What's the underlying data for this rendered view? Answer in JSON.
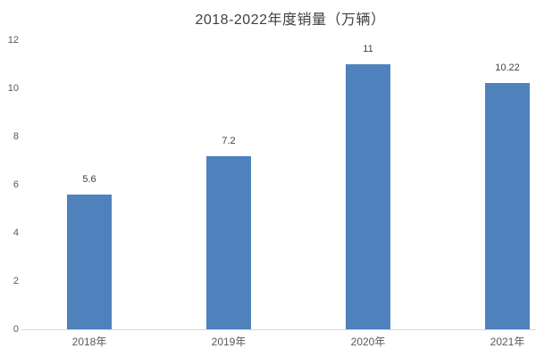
{
  "chart_data": {
    "type": "bar",
    "title": "2018-2022年度销量（万辆）",
    "categories": [
      "2018年",
      "2019年",
      "2020年",
      "2021年"
    ],
    "values": [
      5.6,
      7.2,
      11,
      10.22
    ],
    "data_labels": [
      "5.6",
      "7.2",
      "11",
      "10.22"
    ],
    "y_ticks": [
      0,
      2,
      4,
      6,
      8,
      10,
      12
    ],
    "ylim": [
      0,
      12
    ],
    "xlabel": "",
    "ylabel": "",
    "grid": false,
    "legend": false,
    "colors": {
      "bar": "#4f81bd",
      "title_text": "#404040",
      "tick_text": "#595959",
      "data_label_text": "#404040",
      "axis_line": "#d9d9d9",
      "background": "#ffffff"
    }
  }
}
